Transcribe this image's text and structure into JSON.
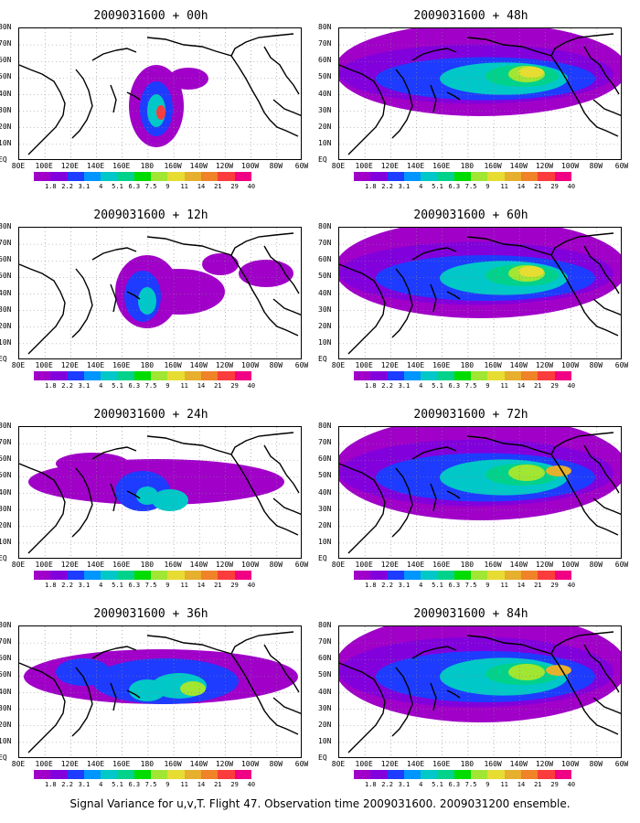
{
  "panels": [
    {
      "title": "2009031600 + 00h",
      "level": 0
    },
    {
      "title": "2009031600 + 48h",
      "level": 4
    },
    {
      "title": "2009031600 + 12h",
      "level": 1
    },
    {
      "title": "2009031600 + 60h",
      "level": 5
    },
    {
      "title": "2009031600 + 24h",
      "level": 2
    },
    {
      "title": "2009031600 + 72h",
      "level": 6
    },
    {
      "title": "2009031600 + 36h",
      "level": 3
    },
    {
      "title": "2009031600 + 84h",
      "level": 7
    }
  ],
  "lat_labels": [
    "80N",
    "70N",
    "60N",
    "50N",
    "40N",
    "30N",
    "20N",
    "10N",
    "EQ"
  ],
  "lon_labels": [
    "80E",
    "100E",
    "120E",
    "140E",
    "160E",
    "180",
    "160W",
    "140W",
    "120W",
    "100W",
    "80W",
    "60W"
  ],
  "colorbar": {
    "labels": [
      "1.8",
      "2.2",
      "3.1",
      "4",
      "5.1",
      "6.3",
      "7.5",
      "9",
      "11",
      "14",
      "21",
      "29",
      "40"
    ],
    "colors": [
      "#a000c8",
      "#8200dc",
      "#1e3cff",
      "#0096ff",
      "#00c8c8",
      "#00d28c",
      "#00dc00",
      "#a0e632",
      "#e6dc32",
      "#e6af2d",
      "#f08228",
      "#fa3c3c",
      "#f00082"
    ]
  },
  "caption": "Signal Variance for u,v,T. Flight 47. Observation time 2009031600. 2009031200 ensemble."
}
